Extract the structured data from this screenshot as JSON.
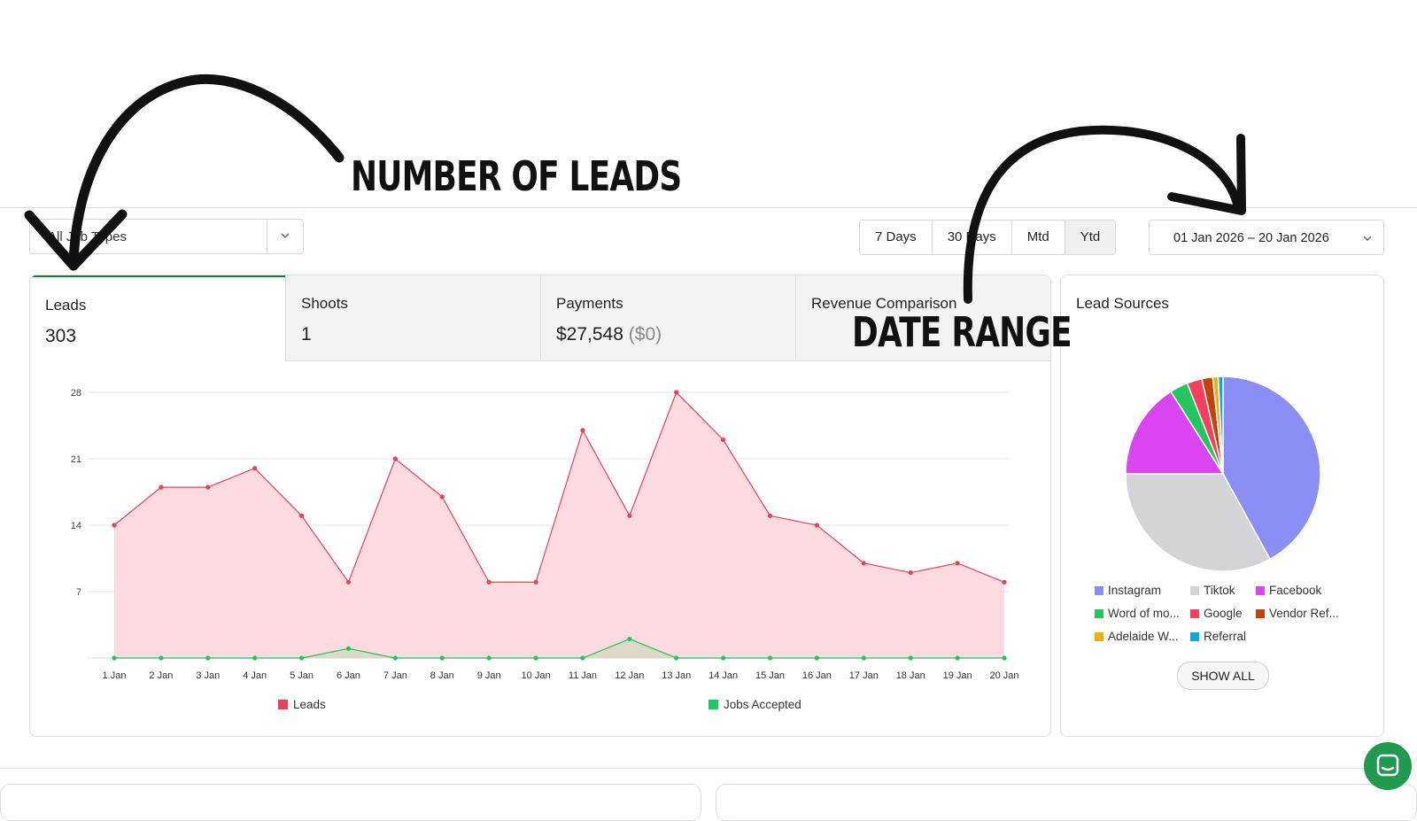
{
  "annotations": {
    "leads_label": "NUMBER OF LEADS",
    "date_label": "DATE RANGE"
  },
  "filter": {
    "job_types": "All Job Types"
  },
  "ranges": [
    {
      "label": "7 Days",
      "active": false
    },
    {
      "label": "30 Days",
      "active": false
    },
    {
      "label": "Mtd",
      "active": false
    },
    {
      "label": "Ytd",
      "active": true
    }
  ],
  "date_range": "01 Jan 2026 – 20 Jan 2026",
  "tabs": [
    {
      "label": "Leads",
      "value": "303",
      "extra": ""
    },
    {
      "label": "Shoots",
      "value": "1",
      "extra": ""
    },
    {
      "label": "Payments",
      "value": "$27,548",
      "extra": "($0)"
    },
    {
      "label": "Revenue Comparison",
      "value": "",
      "extra": ""
    }
  ],
  "chart_data": {
    "type": "area",
    "x": [
      "1 Jan",
      "2 Jan",
      "3 Jan",
      "4 Jan",
      "5 Jan",
      "6 Jan",
      "7 Jan",
      "8 Jan",
      "9 Jan",
      "10 Jan",
      "11 Jan",
      "12 Jan",
      "13 Jan",
      "14 Jan",
      "15 Jan",
      "16 Jan",
      "17 Jan",
      "18 Jan",
      "19 Jan",
      "20 Jan"
    ],
    "yticks": [
      7,
      14,
      21,
      28
    ],
    "ylim": [
      0,
      28
    ],
    "series": [
      {
        "name": "Leads",
        "color": "#e8415a",
        "fill": "#fddbe0",
        "values": [
          14,
          18,
          18,
          20,
          15,
          8,
          21,
          17,
          8,
          8,
          24,
          15,
          28,
          23,
          15,
          14,
          10,
          9,
          10,
          8
        ]
      },
      {
        "name": "Jobs Accepted",
        "color": "#22c55e",
        "fill": "#d9d9c8",
        "values": [
          0,
          0,
          0,
          0,
          0,
          1,
          0,
          0,
          0,
          0,
          0,
          2,
          0,
          0,
          0,
          0,
          0,
          0,
          0,
          0
        ]
      }
    ]
  },
  "lead_sources": {
    "title": "Lead Sources",
    "slices": [
      {
        "name": "Instagram",
        "value": 42,
        "color": "#8b8ff5"
      },
      {
        "name": "Tiktok",
        "value": 33,
        "color": "#d4d4d8"
      },
      {
        "name": "Facebook",
        "value": 16,
        "color": "#d946ef"
      },
      {
        "name": "Word of mo...",
        "value": 3,
        "color": "#22c55e"
      },
      {
        "name": "Google",
        "value": 2.5,
        "color": "#f43f5e"
      },
      {
        "name": "Vendor Ref...",
        "value": 1.8,
        "color": "#c2410c"
      },
      {
        "name": "Adelaide W...",
        "value": 0.9,
        "color": "#eab308"
      },
      {
        "name": "Referral",
        "value": 0.8,
        "color": "#0ea5e9"
      }
    ],
    "show_all": "SHOW ALL"
  }
}
